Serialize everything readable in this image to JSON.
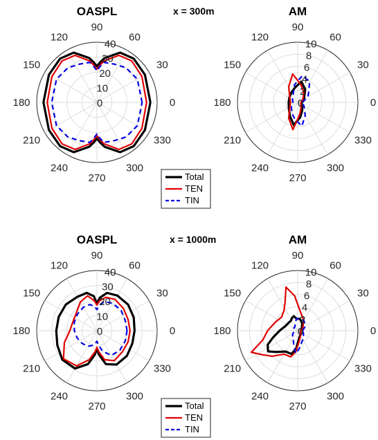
{
  "colors": {
    "total": "#000000",
    "ten": "#e00000",
    "tin": "#0000e0"
  },
  "rows": [
    {
      "label": "x = 300m"
    },
    {
      "label": "x = 1000m"
    }
  ],
  "legend": {
    "entries": [
      {
        "name": "Total",
        "style": "solid",
        "color": "#000000"
      },
      {
        "name": "TEN",
        "style": "solid",
        "color": "#e00000"
      },
      {
        "name": "TIN",
        "style": "dashed",
        "color": "#0000e0"
      }
    ]
  },
  "chart_data": [
    {
      "type": "line",
      "projection": "polar",
      "title": "OASPL",
      "theta_ticks": [
        0,
        30,
        60,
        90,
        120,
        150,
        180,
        210,
        240,
        270,
        300,
        330
      ],
      "theta_tick_labels": [
        "0",
        "30",
        "60",
        "90",
        "120",
        "150",
        "180",
        "210",
        "240",
        "270",
        "300",
        "330"
      ],
      "rlim": [
        0,
        40
      ],
      "r_ticks": [
        0,
        10,
        20,
        30,
        40
      ],
      "r_tick_labels": [
        "0",
        "10",
        "20",
        "30",
        "40"
      ],
      "theta": [
        0,
        30,
        50,
        65,
        80,
        85,
        90,
        95,
        100,
        115,
        130,
        150,
        180,
        210,
        230,
        245,
        260,
        265,
        270,
        275,
        280,
        295,
        310,
        330,
        360
      ],
      "series": [
        {
          "name": "Total",
          "r": [
            35.5,
            36.8,
            38,
            36.5,
            30,
            27,
            24,
            27,
            30,
            36.5,
            38,
            36.8,
            35.5,
            36.8,
            38,
            36.5,
            30,
            27,
            24,
            27,
            30,
            36.5,
            38,
            36.8,
            35.5
          ]
        },
        {
          "name": "TEN",
          "r": [
            33,
            34.5,
            36,
            34.5,
            28,
            25,
            22,
            25,
            28,
            34.5,
            36,
            34.5,
            33,
            34.5,
            36,
            34.5,
            28,
            25,
            22,
            25,
            28,
            34.5,
            36,
            34.5,
            33
          ]
        },
        {
          "name": "TIN",
          "r": [
            30,
            31,
            30,
            28,
            27,
            24,
            21,
            24,
            27,
            28,
            30,
            31,
            30,
            31,
            30,
            28,
            27,
            24,
            21,
            24,
            27,
            28,
            30,
            31,
            30
          ]
        }
      ]
    },
    {
      "type": "line",
      "projection": "polar",
      "title": "AM",
      "theta_ticks": [
        0,
        30,
        60,
        90,
        120,
        150,
        180,
        210,
        240,
        270,
        300,
        330
      ],
      "theta_tick_labels": [
        "0",
        "30",
        "60",
        "90",
        "120",
        "150",
        "180",
        "210",
        "240",
        "270",
        "300",
        "330"
      ],
      "rlim": [
        0,
        10
      ],
      "r_ticks": [
        0,
        2,
        4,
        6,
        8,
        10
      ],
      "r_tick_labels": [
        "0",
        "2",
        "4",
        "6",
        "8",
        "10"
      ],
      "theta": [
        0,
        30,
        60,
        80,
        100,
        120,
        150,
        180,
        210,
        240,
        260,
        280,
        300,
        330,
        360
      ],
      "series": [
        {
          "name": "Total",
          "r": [
            0.6,
            1.2,
            2.5,
            3.5,
            2.5,
            2.0,
            1.6,
            1.5,
            1.7,
            2.6,
            3.8,
            2.5,
            1.5,
            0.8,
            0.6
          ]
        },
        {
          "name": "TEN",
          "r": [
            0.5,
            1.0,
            2.0,
            3.0,
            4.8,
            3.0,
            1.5,
            1.2,
            1.5,
            3.0,
            4.6,
            2.0,
            1.1,
            0.6,
            0.5
          ]
        },
        {
          "name": "TIN",
          "r": [
            0.8,
            2.0,
            4.0,
            4.5,
            3.0,
            1.5,
            1.0,
            0.8,
            1.2,
            2.0,
            2.8,
            4.0,
            2.5,
            1.2,
            0.8
          ]
        }
      ]
    },
    {
      "type": "line",
      "projection": "polar",
      "title": "OASPL",
      "theta_ticks": [
        0,
        30,
        60,
        90,
        120,
        150,
        180,
        210,
        240,
        270,
        300,
        330
      ],
      "theta_tick_labels": [
        "0",
        "30",
        "60",
        "90",
        "120",
        "150",
        "180",
        "210",
        "240",
        "270",
        "300",
        "330"
      ],
      "rlim": [
        0,
        40
      ],
      "r_ticks": [
        0,
        10,
        20,
        30,
        40
      ],
      "r_tick_labels": [
        "0",
        "10",
        "20",
        "30",
        "40"
      ],
      "theta": [
        0,
        20,
        40,
        60,
        75,
        85,
        90,
        95,
        105,
        120,
        140,
        160,
        180,
        200,
        220,
        240,
        255,
        265,
        270,
        275,
        285,
        300,
        320,
        340,
        360
      ],
      "series": [
        {
          "name": "Total",
          "r": [
            25,
            26,
            27,
            27,
            26,
            22,
            18,
            23,
            26,
            26,
            27,
            27,
            27,
            28,
            30,
            29,
            23,
            16,
            12,
            16,
            23,
            26,
            26,
            25,
            25
          ]
        },
        {
          "name": "TEN",
          "r": [
            22,
            22,
            23,
            24,
            23,
            20,
            17,
            20,
            24,
            22,
            18,
            17,
            18,
            23,
            29,
            27,
            20,
            14,
            11,
            14,
            20,
            23,
            22,
            22,
            22
          ]
        },
        {
          "name": "TIN",
          "r": [
            20,
            20,
            21,
            21,
            20,
            17,
            14,
            16,
            18,
            18,
            17,
            16,
            15,
            14,
            13,
            12,
            10,
            8,
            7,
            9,
            14,
            19,
            20,
            20,
            20
          ]
        }
      ]
    },
    {
      "type": "line",
      "projection": "polar",
      "title": "AM",
      "theta_ticks": [
        0,
        30,
        60,
        90,
        120,
        150,
        180,
        210,
        240,
        270,
        300,
        330
      ],
      "theta_tick_labels": [
        "0",
        "30",
        "60",
        "90",
        "120",
        "150",
        "180",
        "210",
        "240",
        "270",
        "300",
        "330"
      ],
      "rlim": [
        0,
        10
      ],
      "r_ticks": [
        0,
        2,
        4,
        6,
        8,
        10
      ],
      "r_tick_labels": [
        "0",
        "2",
        "4",
        "6",
        "8",
        "10"
      ],
      "theta": [
        0,
        30,
        60,
        80,
        95,
        105,
        115,
        125,
        140,
        160,
        180,
        195,
        205,
        215,
        225,
        240,
        255,
        265,
        275,
        290,
        310,
        340,
        360
      ],
      "series": [
        {
          "name": "Total",
          "r": [
            0.5,
            0.8,
            1.5,
            2.0,
            2.0,
            2.5,
            2.3,
            2.0,
            2.0,
            2.2,
            3.0,
            4.2,
            5.5,
            6.0,
            5.0,
            4.0,
            4.0,
            3.0,
            1.6,
            1.0,
            0.8,
            0.5,
            0.5
          ]
        },
        {
          "name": "TEN",
          "r": [
            0.5,
            1.0,
            2.0,
            3.0,
            5.8,
            7.5,
            5.0,
            4.0,
            3.5,
            4.0,
            5.0,
            6.0,
            8.5,
            7.0,
            6.0,
            4.5,
            4.5,
            3.5,
            2.0,
            1.2,
            0.8,
            0.5,
            0.5
          ]
        },
        {
          "name": "TIN",
          "r": [
            0.8,
            1.5,
            2.0,
            2.0,
            2.0,
            1.5,
            1.0,
            0.8,
            0.8,
            0.6,
            0.5,
            0.6,
            0.8,
            1.0,
            1.2,
            1.5,
            2.5,
            3.8,
            3.0,
            2.0,
            1.5,
            1.0,
            0.8
          ]
        }
      ]
    }
  ]
}
